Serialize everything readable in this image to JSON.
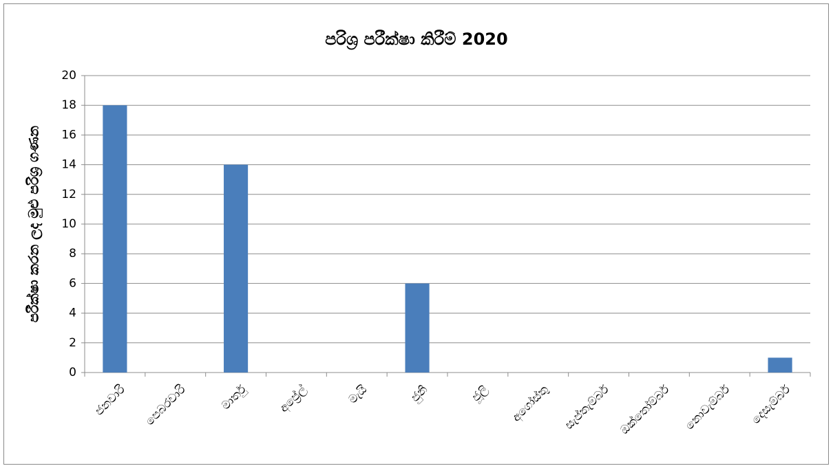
{
  "chart_data": {
    "type": "bar",
    "title": "පරිශ්‍ර පරීක්ෂා කිරීම් 2020",
    "y_label": "පරීක්ෂා කරන ලද මුළු පරිශ්‍ර ගණන",
    "categories": [
      "ජනවාරි",
      "පෙබරවාරි",
      "මාර්තු",
      "අප්‍රේල්",
      "මැයි",
      "ජුනි",
      "ජූලි",
      "අගෝස්තු",
      "සැප්තැම්බර්",
      "ඔක්තෝම්බර්",
      "නොවැම්බර්",
      "දෙසැම්බර්"
    ],
    "values": [
      18,
      0,
      14,
      0,
      0,
      6,
      0,
      0,
      0,
      0,
      0,
      1
    ],
    "color": "#4a7ebb",
    "ylim": [
      0,
      20
    ],
    "yticks": [
      0,
      2,
      4,
      6,
      8,
      10,
      12,
      14,
      16,
      18,
      20
    ],
    "grid": true
  }
}
